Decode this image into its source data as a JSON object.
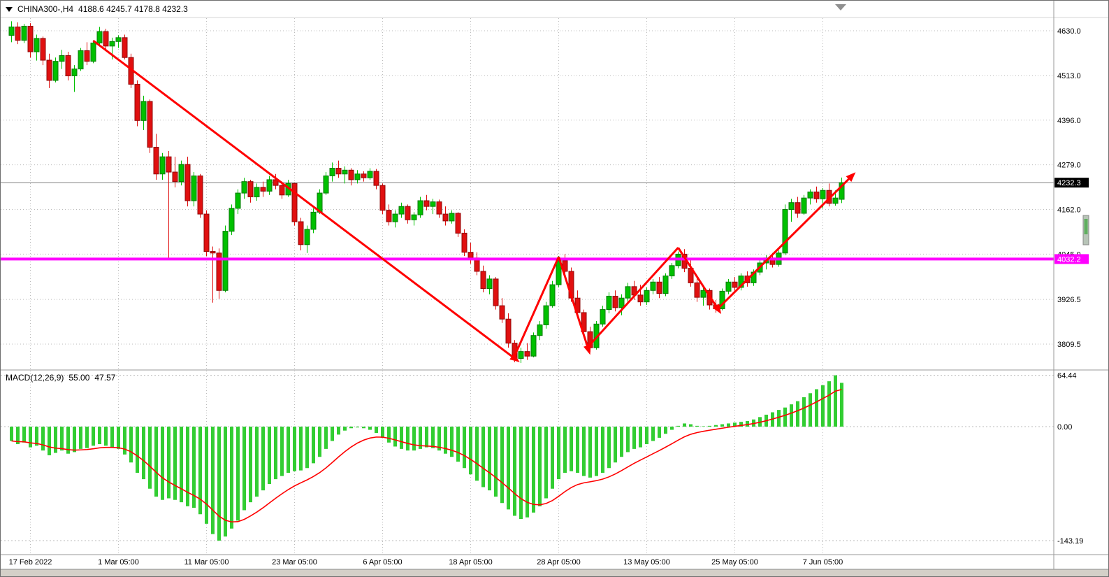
{
  "header": {
    "title": "CHINA300-,H4",
    "ohlc": "4188.6 4245.7 4178.8 4232.3"
  },
  "indicator": {
    "label": "MACD(12,26,9)",
    "main": "55.00",
    "signal": "47.57"
  },
  "colors": {
    "bull": "#00C000",
    "bear": "#E01010",
    "bull_stroke": "#067806",
    "bear_stroke": "#8F0808",
    "macd_bar": "#32CD32",
    "signal_line": "#FF0000",
    "trend_arrow": "#FF0000",
    "hline": "#FF00FF",
    "grid": "#BBBBBB",
    "text": "#000000",
    "current_price_box": "#000000",
    "separator": "#9A9A9A",
    "shift_marker": "#909090"
  },
  "chart_data": {
    "type": "candlestick",
    "symbol": "CHINA300-",
    "timeframe": "H4",
    "current_bar": {
      "open": 4188.6,
      "high": 4245.7,
      "low": 4178.8,
      "close": 4232.3
    },
    "price_axis": {
      "ticks": [
        {
          "v": 4630.0,
          "label": "4630.0"
        },
        {
          "v": 4513.0,
          "label": "4513.0"
        },
        {
          "v": 4396.0,
          "label": "4396.0"
        },
        {
          "v": 4279.0,
          "label": "4279.0"
        },
        {
          "v": 4162.0,
          "label": "4162.0"
        },
        {
          "v": 4045.0,
          "label": "4045.0"
        },
        {
          "v": 3926.5,
          "label": "3926.5"
        },
        {
          "v": 3809.5,
          "label": "3809.5"
        }
      ],
      "current_price": {
        "value": 4232.3,
        "label": "4232.3"
      },
      "horizontal_line": {
        "value": 4032.2,
        "label": "4032.2"
      }
    },
    "time_axis": {
      "ticks": [
        {
          "i": 3,
          "label": "17 Feb 2022"
        },
        {
          "i": 17,
          "label": "1 Mar 05:00"
        },
        {
          "i": 31,
          "label": "11 Mar 05:00"
        },
        {
          "i": 45,
          "label": "23 Mar 05:00"
        },
        {
          "i": 59,
          "label": "6 Apr 05:00"
        },
        {
          "i": 73,
          "label": "18 Apr 05:00"
        },
        {
          "i": 87,
          "label": "28 Apr 05:00"
        },
        {
          "i": 101,
          "label": "13 May 05:00"
        },
        {
          "i": 115,
          "label": "25 May 05:00"
        },
        {
          "i": 129,
          "label": "7 Jun 05:00"
        }
      ]
    },
    "candles": [
      [
        4618,
        4655,
        4600,
        4640
      ],
      [
        4640,
        4652,
        4595,
        4605
      ],
      [
        4605,
        4648,
        4598,
        4642
      ],
      [
        4642,
        4650,
        4560,
        4575
      ],
      [
        4575,
        4620,
        4552,
        4610
      ],
      [
        4610,
        4615,
        4540,
        4553
      ],
      [
        4553,
        4570,
        4480,
        4500
      ],
      [
        4500,
        4560,
        4495,
        4550
      ],
      [
        4550,
        4580,
        4530,
        4565
      ],
      [
        4565,
        4575,
        4500,
        4512
      ],
      [
        4512,
        4540,
        4470,
        4530
      ],
      [
        4530,
        4585,
        4525,
        4578
      ],
      [
        4578,
        4600,
        4540,
        4550
      ],
      [
        4550,
        4605,
        4545,
        4598
      ],
      [
        4598,
        4640,
        4590,
        4628
      ],
      [
        4628,
        4635,
        4580,
        4590
      ],
      [
        4590,
        4612,
        4555,
        4602
      ],
      [
        4602,
        4618,
        4585,
        4612
      ],
      [
        4612,
        4620,
        4555,
        4560
      ],
      [
        4560,
        4570,
        4480,
        4490
      ],
      [
        4490,
        4500,
        4380,
        4395
      ],
      [
        4395,
        4460,
        4370,
        4445
      ],
      [
        4445,
        4450,
        4310,
        4325
      ],
      [
        4325,
        4360,
        4240,
        4255
      ],
      [
        4255,
        4310,
        4240,
        4300
      ],
      [
        4300,
        4315,
        4035,
        4260
      ],
      [
        4260,
        4300,
        4220,
        4235
      ],
      [
        4235,
        4290,
        4225,
        4280
      ],
      [
        4280,
        4300,
        4170,
        4185
      ],
      [
        4185,
        4260,
        4170,
        4250
      ],
      [
        4250,
        4255,
        4140,
        4150
      ],
      [
        4150,
        4160,
        4040,
        4052
      ],
      [
        4052,
        4065,
        3918,
        4048
      ],
      [
        4048,
        4060,
        3928,
        3950
      ],
      [
        3950,
        4120,
        3945,
        4105
      ],
      [
        4105,
        4175,
        4095,
        4165
      ],
      [
        4165,
        4215,
        4150,
        4205
      ],
      [
        4205,
        4245,
        4190,
        4235
      ],
      [
        4235,
        4240,
        4180,
        4195
      ],
      [
        4195,
        4230,
        4185,
        4220
      ],
      [
        4220,
        4235,
        4195,
        4210
      ],
      [
        4210,
        4250,
        4200,
        4240
      ],
      [
        4240,
        4255,
        4215,
        4225
      ],
      [
        4225,
        4235,
        4190,
        4200
      ],
      [
        4200,
        4240,
        4195,
        4230
      ],
      [
        4230,
        4232,
        4120,
        4130
      ],
      [
        4130,
        4140,
        4055,
        4070
      ],
      [
        4070,
        4120,
        4048,
        4110
      ],
      [
        4110,
        4165,
        4100,
        4155
      ],
      [
        4155,
        4215,
        4150,
        4205
      ],
      [
        4205,
        4260,
        4200,
        4250
      ],
      [
        4250,
        4285,
        4235,
        4270
      ],
      [
        4270,
        4290,
        4245,
        4255
      ],
      [
        4255,
        4275,
        4230,
        4265
      ],
      [
        4265,
        4270,
        4225,
        4240
      ],
      [
        4240,
        4265,
        4230,
        4255
      ],
      [
        4255,
        4262,
        4235,
        4245
      ],
      [
        4245,
        4270,
        4240,
        4262
      ],
      [
        4262,
        4268,
        4215,
        4225
      ],
      [
        4225,
        4230,
        4150,
        4160
      ],
      [
        4160,
        4175,
        4120,
        4130
      ],
      [
        4130,
        4160,
        4115,
        4150
      ],
      [
        4150,
        4180,
        4140,
        4170
      ],
      [
        4170,
        4175,
        4125,
        4135
      ],
      [
        4135,
        4155,
        4120,
        4148
      ],
      [
        4148,
        4195,
        4140,
        4185
      ],
      [
        4185,
        4200,
        4160,
        4170
      ],
      [
        4170,
        4190,
        4150,
        4182
      ],
      [
        4182,
        4188,
        4140,
        4150
      ],
      [
        4150,
        4170,
        4120,
        4132
      ],
      [
        4132,
        4160,
        4125,
        4152
      ],
      [
        4152,
        4155,
        4090,
        4100
      ],
      [
        4100,
        4110,
        4040,
        4050
      ],
      [
        4050,
        4075,
        4020,
        4035
      ],
      [
        4035,
        4050,
        3990,
        4000
      ],
      [
        4000,
        4015,
        3945,
        3955
      ],
      [
        3955,
        3990,
        3940,
        3980
      ],
      [
        3980,
        3985,
        3900,
        3910
      ],
      [
        3910,
        3930,
        3865,
        3875
      ],
      [
        3875,
        3890,
        3800,
        3812
      ],
      [
        3812,
        3820,
        3762,
        3772
      ],
      [
        3772,
        3800,
        3760,
        3790
      ],
      [
        3790,
        3812,
        3768,
        3778
      ],
      [
        3778,
        3840,
        3775,
        3832
      ],
      [
        3832,
        3870,
        3820,
        3860
      ],
      [
        3860,
        3920,
        3850,
        3910
      ],
      [
        3910,
        3975,
        3905,
        3965
      ],
      [
        3965,
        4040,
        3958,
        4028
      ],
      [
        4028,
        4045,
        3990,
        4000
      ],
      [
        4000,
        4010,
        3920,
        3930
      ],
      [
        3930,
        3950,
        3880,
        3892
      ],
      [
        3892,
        3900,
        3830,
        3842
      ],
      [
        3842,
        3855,
        3790,
        3800
      ],
      [
        3800,
        3870,
        3795,
        3862
      ],
      [
        3862,
        3910,
        3855,
        3900
      ],
      [
        3900,
        3945,
        3890,
        3935
      ],
      [
        3935,
        3950,
        3895,
        3905
      ],
      [
        3905,
        3940,
        3885,
        3930
      ],
      [
        3930,
        3970,
        3920,
        3960
      ],
      [
        3960,
        3975,
        3925,
        3938
      ],
      [
        3938,
        3965,
        3910,
        3920
      ],
      [
        3920,
        3958,
        3912,
        3950
      ],
      [
        3950,
        3980,
        3940,
        3972
      ],
      [
        3972,
        3985,
        3930,
        3942
      ],
      [
        3942,
        3995,
        3935,
        3988
      ],
      [
        3988,
        4022,
        3980,
        4015
      ],
      [
        4015,
        4052,
        4008,
        4045
      ],
      [
        4045,
        4058,
        3998,
        4008
      ],
      [
        4008,
        4030,
        3960,
        3970
      ],
      [
        3970,
        3985,
        3920,
        3932
      ],
      [
        3932,
        3960,
        3910,
        3950
      ],
      [
        3950,
        3955,
        3900,
        3912
      ],
      [
        3912,
        3925,
        3892,
        3902
      ],
      [
        3902,
        3955,
        3898,
        3948
      ],
      [
        3948,
        3980,
        3940,
        3972
      ],
      [
        3972,
        3985,
        3945,
        3958
      ],
      [
        3958,
        3995,
        3950,
        3988
      ],
      [
        3988,
        4000,
        3960,
        3970
      ],
      [
        3970,
        4005,
        3962,
        3998
      ],
      [
        3998,
        4030,
        3990,
        4022
      ],
      [
        4022,
        4042,
        4005,
        4035
      ],
      [
        4035,
        4048,
        4010,
        4018
      ],
      [
        4018,
        4055,
        4012,
        4048
      ],
      [
        4048,
        4175,
        4042,
        4162
      ],
      [
        4162,
        4190,
        4130,
        4180
      ],
      [
        4180,
        4195,
        4140,
        4152
      ],
      [
        4152,
        4200,
        4148,
        4192
      ],
      [
        4192,
        4215,
        4175,
        4208
      ],
      [
        4208,
        4222,
        4180,
        4190
      ],
      [
        4190,
        4218,
        4165,
        4212
      ],
      [
        4212,
        4230,
        4170,
        4178
      ],
      [
        4178,
        4212,
        4172,
        4192
      ],
      [
        4188.6,
        4245.7,
        4178.8,
        4232.3
      ]
    ],
    "macd": {
      "params": "12,26,9",
      "signal_period": 9,
      "axis_ticks": [
        {
          "v": 64.44,
          "label": "64.44"
        },
        {
          "v": 0,
          "label": "0.00"
        },
        {
          "v": -143.19,
          "label": "-143.19"
        }
      ],
      "values": [
        -18,
        -22,
        -20,
        -26,
        -24,
        -30,
        -36,
        -33,
        -30,
        -34,
        -32,
        -28,
        -27,
        -24,
        -22,
        -24,
        -26,
        -28,
        -35,
        -45,
        -58,
        -66,
        -78,
        -88,
        -92,
        -90,
        -92,
        -95,
        -100,
        -102,
        -110,
        -122,
        -135,
        -143.19,
        -138,
        -128,
        -118,
        -105,
        -95,
        -88,
        -80,
        -72,
        -66,
        -62,
        -58,
        -56,
        -55,
        -52,
        -46,
        -38,
        -28,
        -18,
        -10,
        -5,
        -2,
        -1,
        -2,
        -4,
        -8,
        -14,
        -20,
        -25,
        -28,
        -30,
        -30,
        -28,
        -26,
        -27,
        -30,
        -34,
        -38,
        -44,
        -52,
        -60,
        -68,
        -76,
        -80,
        -88,
        -96,
        -104,
        -112,
        -116,
        -114,
        -108,
        -100,
        -90,
        -78,
        -66,
        -58,
        -56,
        -58,
        -62,
        -64,
        -62,
        -58,
        -52,
        -45,
        -38,
        -32,
        -28,
        -26,
        -22,
        -18,
        -14,
        -9,
        -4,
        1,
        4,
        3,
        1,
        0.5,
        1,
        2,
        3,
        4,
        5,
        6,
        7,
        9,
        12,
        15,
        18,
        21,
        24,
        28,
        32,
        37,
        42,
        47,
        52,
        57,
        64.44,
        55
      ]
    },
    "trend_arrows": [
      {
        "from": {
          "i": 13,
          "price": 4604
        },
        "to": {
          "i": 80,
          "price": 3772
        },
        "arrowhead": true
      },
      {
        "from": {
          "i": 80,
          "price": 3779
        },
        "to": {
          "i": 87,
          "price": 4038
        },
        "arrowhead": false
      },
      {
        "from": {
          "i": 87,
          "price": 4038
        },
        "to": {
          "i": 91.7,
          "price": 3797
        },
        "arrowhead": true
      },
      {
        "from": {
          "i": 91.7,
          "price": 3803
        },
        "to": {
          "i": 106,
          "price": 4062
        },
        "arrowhead": false
      },
      {
        "from": {
          "i": 106,
          "price": 4062
        },
        "to": {
          "i": 112.3,
          "price": 3902
        },
        "arrowhead": true
      },
      {
        "from": {
          "i": 112.3,
          "price": 3902
        },
        "to": {
          "i": 133.5,
          "price": 4248
        },
        "arrowhead": true
      }
    ]
  }
}
